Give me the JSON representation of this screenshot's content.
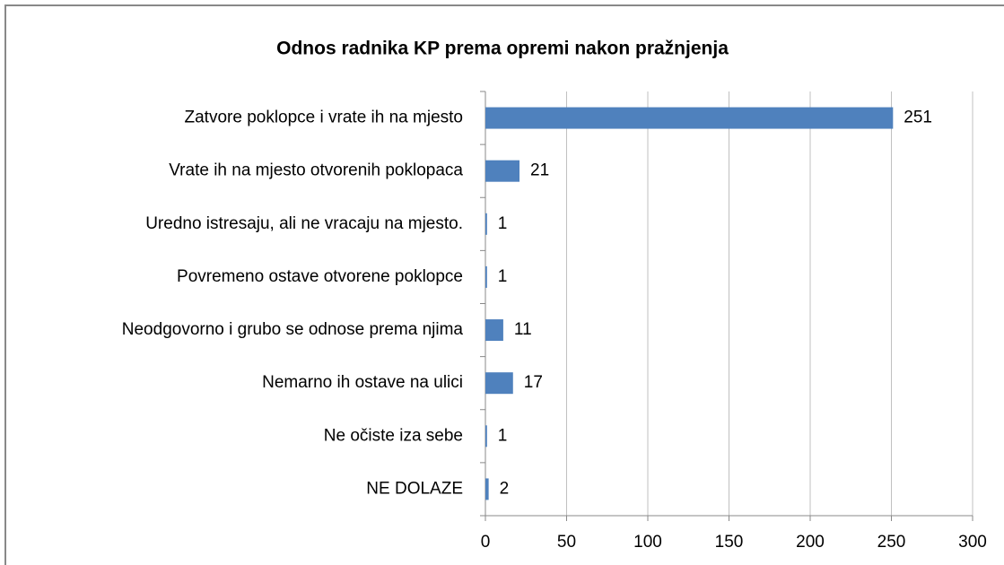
{
  "chart_data": {
    "type": "bar",
    "orientation": "horizontal",
    "title": "Odnos radnika KP prema opremi nakon pražnjenja",
    "categories": [
      "Zatvore poklopce i vrate ih na mjesto",
      "Vrate ih na mjesto otvorenih poklopaca",
      "Uredno istresaju, ali ne vracaju na mjesto.",
      "Povremeno ostave otvorene poklopce",
      "Neodgovorno i grubo se odnose prema njima",
      "Nemarno ih ostave na ulici",
      "Ne očiste iza sebe",
      "NE DOLAZE"
    ],
    "values": [
      251,
      21,
      1,
      1,
      11,
      17,
      1,
      2
    ],
    "color": "#4f81bd",
    "xlim": [
      0,
      300
    ],
    "xticks": [
      0,
      50,
      100,
      150,
      200,
      250,
      300
    ],
    "grid": true
  }
}
